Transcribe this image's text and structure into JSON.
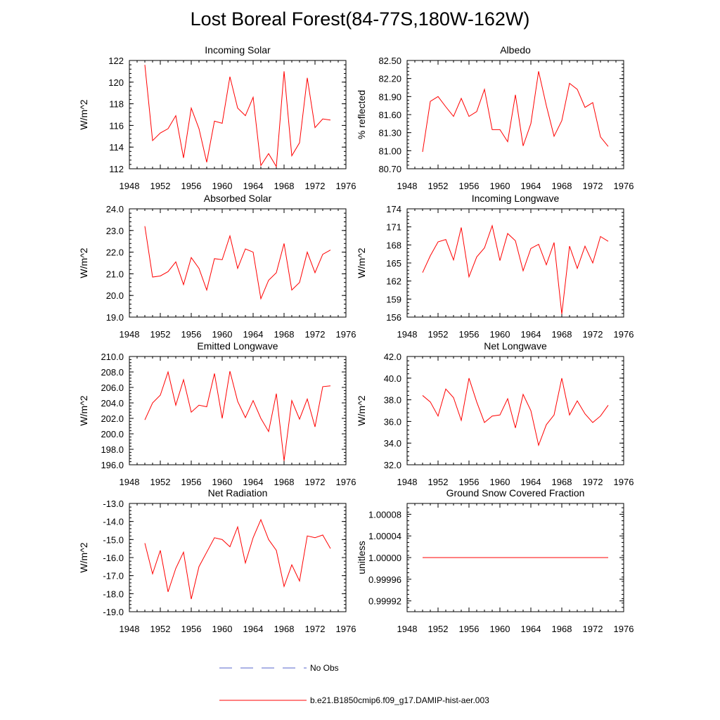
{
  "title": "Lost Boreal Forest(84-77S,180W-162W)",
  "colors": {
    "model": "#ff0000",
    "obs": "#5566cc",
    "axis": "#000000"
  },
  "legend": {
    "obs_label": "No Obs",
    "model_label": "b.e21.B1850cmip6.f09_g17.DAMIP-hist-aer.003"
  },
  "chart_data": [
    {
      "type": "line",
      "title": "Incoming Solar",
      "ylabel": "W/m^2",
      "xlim": [
        1948,
        1976
      ],
      "ylim": [
        112,
        122
      ],
      "xticks": [
        "1948",
        "1952",
        "1956",
        "1960",
        "1964",
        "1968",
        "1972",
        "1976"
      ],
      "yticks": [
        "112",
        "114",
        "116",
        "118",
        "120",
        "122"
      ],
      "x": [
        1950,
        1951,
        1952,
        1953,
        1954,
        1955,
        1956,
        1957,
        1958,
        1959,
        1960,
        1961,
        1962,
        1963,
        1964,
        1965,
        1966,
        1967,
        1968,
        1969,
        1970,
        1971,
        1972,
        1973,
        1974
      ],
      "series": [
        {
          "values": [
            121.6,
            114.6,
            115.3,
            115.7,
            116.9,
            113.0,
            117.6,
            115.7,
            112.6,
            116.4,
            116.2,
            120.5,
            117.6,
            116.9,
            118.6,
            112.3,
            113.4,
            112.2,
            121.0,
            113.2,
            114.4,
            120.4,
            115.8,
            116.6,
            116.5
          ]
        }
      ]
    },
    {
      "type": "line",
      "title": "Albedo",
      "ylabel": "% reflected",
      "xlim": [
        1948,
        1976
      ],
      "ylim": [
        80.7,
        82.5
      ],
      "xticks": [
        "1948",
        "1952",
        "1956",
        "1960",
        "1964",
        "1968",
        "1972",
        "1976"
      ],
      "yticks": [
        "80.70",
        "81.00",
        "81.30",
        "81.60",
        "81.90",
        "82.20",
        "82.50"
      ],
      "x": [
        1950,
        1951,
        1952,
        1953,
        1954,
        1955,
        1956,
        1957,
        1958,
        1959,
        1960,
        1961,
        1962,
        1963,
        1964,
        1965,
        1966,
        1967,
        1968,
        1969,
        1970,
        1971,
        1972,
        1973,
        1974
      ],
      "series": [
        {
          "values": [
            80.98,
            81.82,
            81.9,
            81.73,
            81.57,
            81.87,
            81.57,
            81.65,
            82.02,
            81.35,
            81.35,
            81.15,
            81.93,
            81.08,
            81.45,
            82.32,
            81.75,
            81.24,
            81.5,
            82.12,
            82.02,
            81.72,
            81.8,
            81.23,
            81.07
          ]
        }
      ]
    },
    {
      "type": "line",
      "title": "Absorbed Solar",
      "ylabel": "W/m^2",
      "xlim": [
        1948,
        1976
      ],
      "ylim": [
        19.0,
        24.0
      ],
      "xticks": [
        "1948",
        "1952",
        "1956",
        "1960",
        "1964",
        "1968",
        "1972",
        "1976"
      ],
      "yticks": [
        "19.0",
        "20.0",
        "21.0",
        "22.0",
        "23.0",
        "24.0"
      ],
      "x": [
        1950,
        1951,
        1952,
        1953,
        1954,
        1955,
        1956,
        1957,
        1958,
        1959,
        1960,
        1961,
        1962,
        1963,
        1964,
        1965,
        1966,
        1967,
        1968,
        1969,
        1970,
        1971,
        1972,
        1973,
        1974
      ],
      "series": [
        {
          "values": [
            23.2,
            20.85,
            20.9,
            21.1,
            21.55,
            20.5,
            21.75,
            21.25,
            20.25,
            21.7,
            21.65,
            22.75,
            21.25,
            22.15,
            22.0,
            19.85,
            20.7,
            21.05,
            22.4,
            20.25,
            20.6,
            22.0,
            21.05,
            21.9,
            22.1
          ]
        }
      ]
    },
    {
      "type": "line",
      "title": "Incoming Longwave",
      "ylabel": "W/m^2",
      "xlim": [
        1948,
        1976
      ],
      "ylim": [
        156,
        174
      ],
      "xticks": [
        "1948",
        "1952",
        "1956",
        "1960",
        "1964",
        "1968",
        "1972",
        "1976"
      ],
      "yticks": [
        "156",
        "159",
        "162",
        "165",
        "168",
        "171",
        "174"
      ],
      "x": [
        1950,
        1951,
        1952,
        1953,
        1954,
        1955,
        1956,
        1957,
        1958,
        1959,
        1960,
        1961,
        1962,
        1963,
        1964,
        1965,
        1966,
        1967,
        1968,
        1969,
        1970,
        1971,
        1972,
        1973,
        1974
      ],
      "series": [
        {
          "values": [
            163.4,
            166.2,
            168.5,
            168.9,
            165.5,
            170.9,
            162.7,
            166.0,
            167.5,
            171.2,
            165.4,
            169.9,
            168.7,
            163.7,
            167.4,
            168.1,
            164.7,
            168.4,
            156.5,
            167.8,
            164.1,
            167.8,
            165.0,
            169.4,
            168.6
          ]
        }
      ]
    },
    {
      "type": "line",
      "title": "Emitted Longwave",
      "ylabel": "W/m^2",
      "xlim": [
        1948,
        1976
      ],
      "ylim": [
        196.0,
        210.0
      ],
      "xticks": [
        "1948",
        "1952",
        "1956",
        "1960",
        "1964",
        "1968",
        "1972",
        "1976"
      ],
      "yticks": [
        "196.0",
        "198.0",
        "200.0",
        "202.0",
        "204.0",
        "206.0",
        "208.0",
        "210.0"
      ],
      "x": [
        1950,
        1951,
        1952,
        1953,
        1954,
        1955,
        1956,
        1957,
        1958,
        1959,
        1960,
        1961,
        1962,
        1963,
        1964,
        1965,
        1966,
        1967,
        1968,
        1969,
        1970,
        1971,
        1972,
        1973,
        1974
      ],
      "series": [
        {
          "values": [
            201.8,
            204.0,
            205.0,
            208.0,
            203.7,
            207.0,
            202.8,
            203.7,
            203.5,
            207.8,
            202.0,
            208.1,
            204.2,
            202.1,
            204.3,
            202.0,
            200.3,
            205.2,
            196.5,
            204.3,
            201.9,
            204.5,
            200.9,
            206.1,
            206.2
          ]
        }
      ]
    },
    {
      "type": "line",
      "title": "Net Longwave",
      "ylabel": "W/m^2",
      "xlim": [
        1948,
        1976
      ],
      "ylim": [
        32.0,
        42.0
      ],
      "xticks": [
        "1948",
        "1952",
        "1956",
        "1960",
        "1964",
        "1968",
        "1972",
        "1976"
      ],
      "yticks": [
        "32.0",
        "34.0",
        "36.0",
        "38.0",
        "40.0",
        "42.0"
      ],
      "x": [
        1950,
        1951,
        1952,
        1953,
        1954,
        1955,
        1956,
        1957,
        1958,
        1959,
        1960,
        1961,
        1962,
        1963,
        1964,
        1965,
        1966,
        1967,
        1968,
        1969,
        1970,
        1971,
        1972,
        1973,
        1974
      ],
      "series": [
        {
          "values": [
            38.4,
            37.8,
            36.5,
            39.0,
            38.2,
            36.1,
            40.0,
            37.8,
            35.9,
            36.5,
            36.6,
            38.1,
            35.4,
            38.5,
            37.0,
            33.8,
            35.7,
            36.6,
            40.0,
            36.6,
            37.9,
            36.7,
            35.9,
            36.5,
            37.5
          ]
        }
      ]
    },
    {
      "type": "line",
      "title": "Net Radiation",
      "ylabel": "W/m^2",
      "xlim": [
        1948,
        1976
      ],
      "ylim": [
        -19.0,
        -13.0
      ],
      "xticks": [
        "1948",
        "1952",
        "1956",
        "1960",
        "1964",
        "1968",
        "1972",
        "1976"
      ],
      "yticks": [
        "-19.0",
        "-18.0",
        "-17.0",
        "-16.0",
        "-15.0",
        "-14.0",
        "-13.0"
      ],
      "x": [
        1950,
        1951,
        1952,
        1953,
        1954,
        1955,
        1956,
        1957,
        1958,
        1959,
        1960,
        1961,
        1962,
        1963,
        1964,
        1965,
        1966,
        1967,
        1968,
        1969,
        1970,
        1971,
        1972,
        1973,
        1974
      ],
      "series": [
        {
          "values": [
            -15.2,
            -16.9,
            -15.6,
            -17.9,
            -16.6,
            -15.7,
            -18.3,
            -16.5,
            -15.7,
            -14.9,
            -15.0,
            -15.4,
            -14.3,
            -16.3,
            -14.9,
            -13.9,
            -15.0,
            -15.6,
            -17.6,
            -16.4,
            -17.3,
            -14.8,
            -14.9,
            -14.75,
            -15.5
          ]
        }
      ]
    },
    {
      "type": "line",
      "title": "Ground Snow Covered Fraction",
      "ylabel": "unitless",
      "xlim": [
        1948,
        1976
      ],
      "ylim": [
        0.9999,
        1.0001
      ],
      "xticks": [
        "1948",
        "1952",
        "1956",
        "1960",
        "1964",
        "1968",
        "1972",
        "1976"
      ],
      "yticks": [
        "0.99992",
        "0.99996",
        "1.00000",
        "1.00004",
        "1.00008"
      ],
      "x": [
        1950,
        1974
      ],
      "series": [
        {
          "values": [
            1.0,
            1.0
          ]
        }
      ]
    }
  ]
}
